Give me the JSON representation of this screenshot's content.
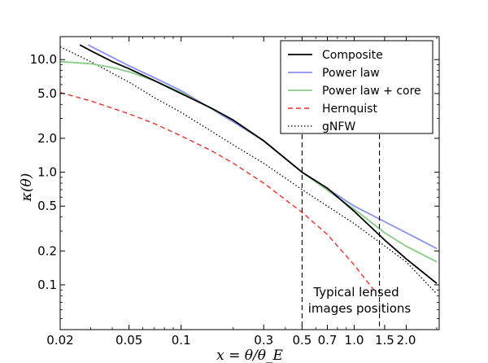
{
  "chart_data": {
    "type": "line",
    "title": "",
    "xlabel": "x = θ/θ_E",
    "ylabel": "κ(θ)",
    "xscale": "log",
    "yscale": "log",
    "xlim": [
      0.02,
      3.1
    ],
    "ylim": [
      0.04,
      16
    ],
    "xticks": [
      0.02,
      0.05,
      0.1,
      0.3,
      0.5,
      0.7,
      1.0,
      1.5,
      2.0
    ],
    "xtick_labels": [
      "0.02",
      "0.05",
      "0.1",
      "0.3",
      "0.5",
      "0.7",
      "1.0",
      "1.5",
      "2.0"
    ],
    "yticks": [
      0.1,
      0.2,
      0.5,
      1.0,
      2.0,
      5.0,
      10.0
    ],
    "ytick_labels": [
      "0.1",
      "0.2",
      "0.5",
      "1.0",
      "2.0",
      "5.0",
      "10.0"
    ],
    "grid": false,
    "legend_position": "top-right",
    "series": [
      {
        "name": "Composite",
        "color": "#000000",
        "style": "solid",
        "x": [
          0.026,
          0.03,
          0.04,
          0.05,
          0.07,
          0.1,
          0.15,
          0.2,
          0.3,
          0.5,
          0.7,
          1.0,
          1.5,
          2.0,
          3.0
        ],
        "y": [
          13.5,
          12.0,
          9.6,
          8.3,
          6.5,
          5.0,
          3.7,
          2.9,
          1.9,
          1.0,
          0.72,
          0.45,
          0.25,
          0.17,
          0.103
        ]
      },
      {
        "name": "Power law",
        "color": "#8a8ff0",
        "style": "solid",
        "x": [
          0.029,
          0.05,
          0.07,
          0.1,
          0.2,
          0.3,
          0.5,
          1.0,
          2.0,
          3.0
        ],
        "y": [
          13.5,
          8.8,
          6.9,
          5.3,
          2.8,
          1.9,
          1.0,
          0.5,
          0.29,
          0.21
        ]
      },
      {
        "name": "Power law + core",
        "color": "#88cc88",
        "style": "solid",
        "x": [
          0.02,
          0.03,
          0.04,
          0.05,
          0.07,
          0.1,
          0.2,
          0.3,
          0.5,
          1.0,
          1.5,
          2.0,
          3.0
        ],
        "y": [
          9.6,
          9.2,
          8.5,
          7.8,
          6.5,
          5.1,
          2.9,
          1.9,
          1.0,
          0.47,
          0.29,
          0.22,
          0.16
        ]
      },
      {
        "name": "Hernquist",
        "color": "#e8312a",
        "style": "dashed",
        "x": [
          0.02,
          0.03,
          0.05,
          0.07,
          0.1,
          0.15,
          0.2,
          0.3,
          0.5,
          0.7,
          1.0,
          1.3
        ],
        "y": [
          5.1,
          4.3,
          3.3,
          2.7,
          2.1,
          1.55,
          1.2,
          0.8,
          0.44,
          0.28,
          0.15,
          0.09
        ]
      },
      {
        "name": "gNFW",
        "color": "#000000",
        "style": "dotted",
        "x": [
          0.02,
          0.03,
          0.05,
          0.07,
          0.1,
          0.2,
          0.3,
          0.5,
          1.0,
          2.0,
          3.0
        ],
        "y": [
          13.0,
          9.6,
          6.3,
          4.6,
          3.4,
          1.75,
          1.2,
          0.7,
          0.35,
          0.16,
          0.083
        ]
      }
    ],
    "vlines": [
      0.5,
      1.4
    ],
    "annotation": "Typical lensed\nimages positions",
    "annotation_lines": [
      "Typical lensed",
      "images positions"
    ]
  }
}
